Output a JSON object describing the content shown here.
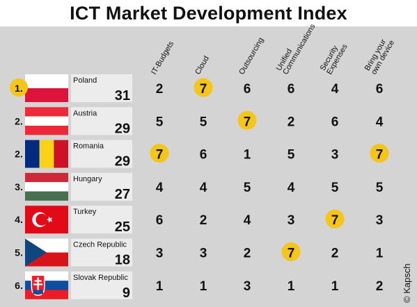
{
  "title": "ICT Market Development Index",
  "credit": "© Kapsch",
  "colors": {
    "background": "#d4d4d4",
    "card": "#ececec",
    "highlight": "#f5c518",
    "text": "#111111"
  },
  "chart_data": {
    "type": "table",
    "title": "ICT Market Development Index",
    "columns": [
      "IT-Budgets",
      "Cloud",
      "Outsourcing",
      "Unified Communications",
      "Security Expenses",
      "Bring your own device"
    ],
    "column_label_lines": [
      [
        "IT-Budgets"
      ],
      [
        "Cloud"
      ],
      [
        "Outsourcing"
      ],
      [
        "Unified",
        "Communications"
      ],
      [
        "Security",
        "Expenses"
      ],
      [
        "Bring your",
        "own device"
      ]
    ],
    "highlight_value": 7,
    "rows": [
      {
        "rank": "1.",
        "country": "Poland",
        "total": 31,
        "flag": "poland-flag",
        "values": [
          2,
          7,
          6,
          6,
          4,
          6
        ]
      },
      {
        "rank": "2.",
        "country": "Austria",
        "total": 29,
        "flag": "austria-flag",
        "values": [
          5,
          5,
          7,
          2,
          6,
          4
        ]
      },
      {
        "rank": "2.",
        "country": "Romania",
        "total": 29,
        "flag": "romania-flag",
        "values": [
          7,
          6,
          1,
          5,
          3,
          7
        ]
      },
      {
        "rank": "3.",
        "country": "Hungary",
        "total": 27,
        "flag": "hungary-flag",
        "values": [
          4,
          4,
          5,
          4,
          5,
          5
        ]
      },
      {
        "rank": "4.",
        "country": "Turkey",
        "total": 25,
        "flag": "turkey-flag",
        "values": [
          6,
          2,
          4,
          3,
          7,
          3
        ]
      },
      {
        "rank": "5.",
        "country": "Czech Republic",
        "total": 18,
        "flag": "czech-republic-flag",
        "values": [
          3,
          3,
          2,
          7,
          2,
          1
        ]
      },
      {
        "rank": "6.",
        "country": "Slovak Republic",
        "total": 9,
        "flag": "slovak-republic-flag",
        "values": [
          1,
          1,
          3,
          1,
          1,
          2
        ]
      }
    ]
  }
}
